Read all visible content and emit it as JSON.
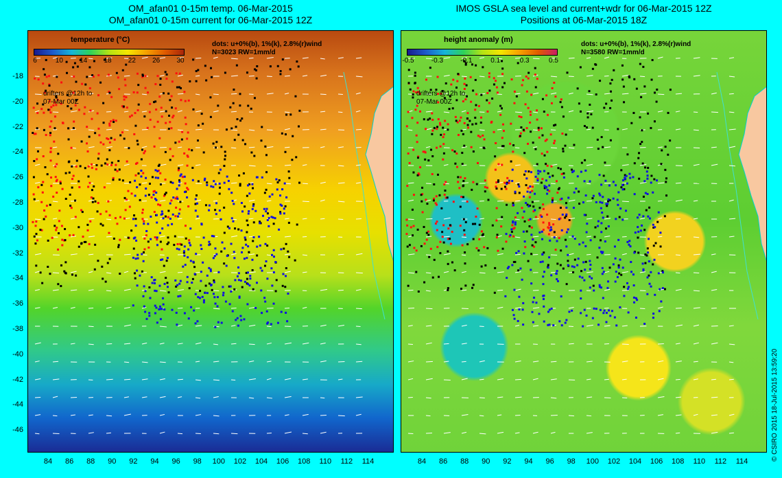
{
  "left_panel": {
    "title_line1": "OM_afan01 0-15m temp. 06-Mar-2015",
    "title_line2": "OM_afan01 0-15m current for 06-Mar-2015 12Z",
    "colorbar_title": "temperature (°C)",
    "colorbar_ticks": [
      "6",
      "10",
      "14",
      "18",
      "22",
      "26",
      "30"
    ],
    "info_line1": "dots: u+0%(b), 1%(k), 2.8%(r)wind",
    "info_line2": "N=3023 RW=1mm/d",
    "drifters_line1": "drifters @12h to",
    "drifters_line2": "07-Mar 00Z"
  },
  "right_panel": {
    "title_line1": "IMOS GSLA sea level and current+wdr for 06-Mar-2015 12Z",
    "title_line2": "Positions at 06-Mar-2015 18Z",
    "colorbar_title": "height anomaly (m)",
    "colorbar_ticks": [
      "-0.5",
      "-0.3",
      "-0.1",
      "0.1",
      "0.3",
      "0.5"
    ],
    "info_line1": "dots: u+0%(b), 1%(k), 2.8%(r)wind",
    "info_line2": "N=3580 RW=1mm/d",
    "drifters_line1": "drifters @12h to",
    "drifters_line2": "07-Mar 00Z"
  },
  "y_axis_labels": [
    "-18",
    "-20",
    "-22",
    "-24",
    "-26",
    "-28",
    "-30",
    "-32",
    "-34",
    "-36",
    "-38",
    "-40",
    "-42",
    "-44",
    "-46"
  ],
  "x_axis_labels": [
    "84",
    "86",
    "88",
    "90",
    "92",
    "94",
    "96",
    "98",
    "100",
    "102",
    "104",
    "106",
    "108",
    "110",
    "112",
    "114"
  ],
  "copyright": "© CSIRO 2015   18-Jul-2015 13:59:20",
  "colors": {
    "background": "#00ffff",
    "dots_blue": "#1010e0",
    "dots_black": "#000000",
    "dots_red": "#ff1010",
    "land": "#f8c8a0"
  }
}
